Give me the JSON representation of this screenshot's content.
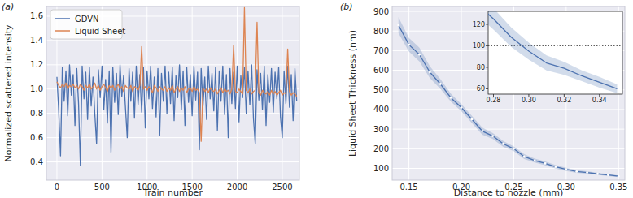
{
  "chart_data": [
    {
      "type": "line",
      "title": "(a)",
      "x_label": "Train number",
      "y_label": "Normalized scattered intensity",
      "x": [
        0,
        20,
        40,
        60,
        80,
        100,
        120,
        140,
        160,
        180,
        200,
        220,
        240,
        260,
        280,
        300,
        320,
        340,
        360,
        380,
        400,
        420,
        440,
        460,
        480,
        500,
        520,
        540,
        560,
        580,
        600,
        620,
        640,
        660,
        680,
        700,
        720,
        740,
        760,
        780,
        800,
        820,
        840,
        860,
        880,
        900,
        920,
        940,
        960,
        980,
        1000,
        1020,
        1040,
        1060,
        1080,
        1100,
        1120,
        1140,
        1160,
        1180,
        1200,
        1220,
        1240,
        1260,
        1280,
        1300,
        1320,
        1340,
        1360,
        1380,
        1400,
        1420,
        1440,
        1460,
        1480,
        1500,
        1520,
        1540,
        1560,
        1580,
        1600,
        1620,
        1640,
        1660,
        1680,
        1700,
        1720,
        1740,
        1760,
        1780,
        1800,
        1820,
        1840,
        1860,
        1880,
        1900,
        1920,
        1940,
        1960,
        1980,
        2000,
        2020,
        2040,
        2060,
        2080,
        2100,
        2120,
        2140,
        2160,
        2180,
        2200,
        2220,
        2240,
        2260,
        2280,
        2300,
        2320,
        2340,
        2360,
        2380,
        2400,
        2420,
        2440,
        2460,
        2480,
        2500,
        2520,
        2540,
        2560,
        2580,
        2600,
        2620,
        2640,
        2660
      ],
      "series": [
        {
          "name": "GDVN",
          "color": "#4c72b0",
          "values": [
            1.1,
            0.82,
            0.45,
            1.18,
            0.9,
            1.15,
            0.78,
            1.2,
            0.95,
            1.12,
            0.7,
            1.17,
            0.88,
            0.37,
            1.19,
            0.92,
            1.14,
            0.75,
            1.18,
            0.86,
            1.1,
            0.8,
            0.55,
            1.16,
            0.93,
            1.19,
            0.83,
            1.08,
            0.72,
            1.15,
            0.48,
            1.18,
            0.89,
            1.13,
            0.79,
            1.2,
            0.94,
            1.11,
            0.85,
            0.6,
            1.17,
            0.9,
            1.14,
            0.76,
            1.19,
            0.87,
            1.12,
            0.81,
            1.18,
            0.68,
            1.15,
            0.92,
            1.19,
            0.84,
            1.1,
            0.77,
            1.17,
            0.62,
            1.13,
            0.9,
            1.19,
            0.8,
            1.14,
            0.88,
            1.18,
            0.74,
            1.11,
            0.93,
            1.2,
            0.83,
            1.15,
            0.7,
            1.18,
            0.89,
            1.12,
            0.78,
            1.19,
            0.91,
            1.14,
            0.5,
            1.17,
            0.86,
            1.1,
            0.75,
            1.19,
            0.92,
            1.13,
            0.82,
            1.18,
            0.66,
            1.15,
            0.9,
            1.19,
            0.79,
            1.12,
            0.6,
            1.17,
            0.88,
            1.14,
            0.84,
            1.19,
            0.73,
            1.11,
            0.93,
            1.18,
            0.8,
            1.15,
            0.87,
            1.2,
            0.76,
            0.55,
            1.16,
            0.91,
            1.13,
            0.83,
            1.19,
            0.7,
            1.12,
            0.89,
            1.17,
            0.81,
            1.14,
            0.92,
            1.18,
            0.77,
            0.6,
            1.15,
            0.88,
            1.19,
            0.85,
            1.12,
            0.74,
            1.17,
            0.9
          ]
        },
        {
          "name": "Liquid Sheet",
          "color": "#dd8452",
          "values": [
            1.06,
            1.03,
            1.01,
            1.04,
            1.02,
            1.05,
            1.0,
            1.03,
            1.02,
            1.04,
            1.01,
            1.03,
            1.0,
            1.04,
            1.02,
            0.99,
            1.03,
            1.01,
            1.04,
            1.0,
            1.02,
            1.05,
            1.0,
            1.03,
            0.99,
            1.02,
            1.04,
            1.01,
            0.98,
            1.03,
            1.01,
            1.03,
            0.99,
            1.02,
            1.04,
            1.0,
            1.02,
            0.98,
            1.03,
            1.01,
            1.0,
            1.03,
            0.98,
            1.02,
            1.01,
            0.99,
            1.03,
            1.35,
            1.0,
            1.02,
            0.99,
            1.02,
            1.0,
            0.97,
            1.03,
            1.01,
            0.98,
            1.02,
            1.0,
            0.99,
            1.02,
            0.98,
            1.01,
            0.99,
            1.03,
            0.97,
            1.0,
            1.02,
            0.98,
            1.01,
            0.99,
            1.02,
            0.97,
            1.0,
            1.01,
            0.98,
            1.02,
            0.99,
            1.0,
            0.97,
            0.57,
            1.01,
            0.98,
            1.0,
            0.97,
            1.01,
            0.99,
            0.98,
            1.0,
            0.96,
            0.99,
            1.01,
            0.97,
            1.0,
            0.98,
            0.99,
            0.96,
            1.0,
            1.36,
            0.98,
            0.97,
            1.0,
            0.98,
            0.96,
            1.67,
            0.99,
            0.97,
            1.0,
            0.96,
            0.98,
            0.99,
            1.55,
            0.97,
            0.95,
            0.99,
            0.97,
            0.96,
            0.98,
            0.95,
            0.99,
            0.96,
            0.98,
            0.95,
            0.97,
            0.99,
            0.95,
            0.97,
            0.96,
            1.33,
            0.98,
            0.95,
            0.97,
            0.96,
            0.94
          ]
        }
      ],
      "xlim": [
        -117,
        2690
      ],
      "ylim": [
        0.25,
        1.68
      ],
      "xticks": [
        0,
        500,
        1000,
        1500,
        2000,
        2500
      ],
      "yticks": [
        0.4,
        0.6,
        0.8,
        {
          "value": 1,
          "label": "1.0"
        },
        1.2,
        1.4,
        1.6
      ],
      "grid": true,
      "legend": "upper left"
    },
    {
      "type": "line",
      "title": "(b)",
      "x_label": "Distance to nozzle (mm)",
      "y_label": "Liquid Sheet Thickness (nm)",
      "x": [
        0.14,
        0.15,
        0.16,
        0.17,
        0.18,
        0.19,
        0.2,
        0.21,
        0.22,
        0.23,
        0.24,
        0.25,
        0.26,
        0.27,
        0.28,
        0.29,
        0.3,
        0.31,
        0.32,
        0.33,
        0.34,
        0.35
      ],
      "series": [
        {
          "color": "#4c72b0",
          "marker": "o",
          "values": [
            830,
            730,
            680,
            590,
            530,
            460,
            410,
            350,
            290,
            265,
            225,
            200,
            160,
            140,
            125,
            108,
            95,
            84,
            79,
            72,
            66,
            60
          ],
          "lower": [
            790,
            695,
            645,
            560,
            505,
            440,
            392,
            332,
            272,
            250,
            210,
            188,
            148,
            130,
            115,
            99,
            87,
            77,
            73,
            67,
            61,
            56
          ],
          "upper": [
            870,
            765,
            715,
            620,
            555,
            480,
            428,
            368,
            308,
            280,
            240,
            212,
            172,
            150,
            135,
            117,
            103,
            91,
            85,
            77,
            71,
            64
          ]
        }
      ],
      "xlim": [
        0.134,
        0.356
      ],
      "ylim": [
        40,
        925
      ],
      "xticks": [
        0.15,
        {
          "value": 0.2,
          "label": "0.20"
        },
        0.25,
        {
          "value": 0.3,
          "label": "0.30"
        },
        0.35
      ],
      "yticks": [
        100,
        200,
        300,
        400,
        500,
        600,
        700,
        800,
        900
      ],
      "grid": true,
      "inset": {
        "xlim": [
          0.277,
          0.353
        ],
        "ylim": [
          55,
          132
        ],
        "xticks": [
          0.28,
          {
            "value": 0.3,
            "label": "0.30"
          },
          0.32,
          0.34
        ],
        "yticks": [
          60,
          80,
          100,
          120
        ],
        "threshold": 100,
        "grid": false
      }
    }
  ]
}
